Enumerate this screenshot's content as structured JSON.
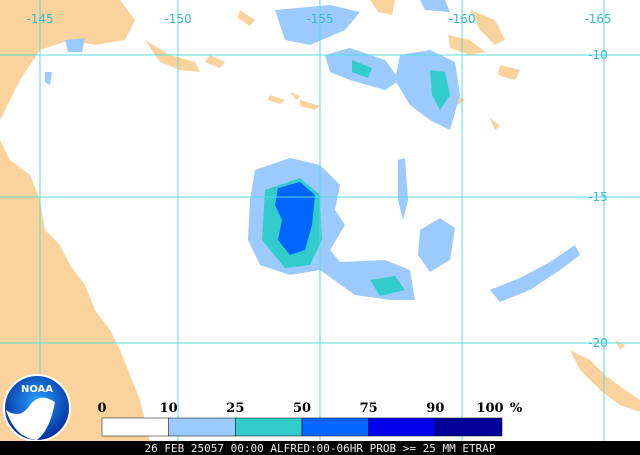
{
  "map": {
    "lon_labels": [
      "-145",
      "-150",
      "-155",
      "-160",
      "-165"
    ],
    "lat_labels": [
      "-10",
      "-15",
      "-20"
    ]
  },
  "legend": {
    "ticks": [
      "0",
      "10",
      "25",
      "50",
      "75",
      "90",
      "100"
    ],
    "unit": "%",
    "colors": [
      "#ffffff",
      "#9ccaff",
      "#33cccc",
      "#0066ff",
      "#0000ee",
      "#000099"
    ]
  },
  "logo": {
    "text": "NOAA"
  },
  "footer": {
    "caption": "26 FEB 25057 00:00 ALFRED:00-06HR PROB >= 25 MM ETRAP"
  }
}
